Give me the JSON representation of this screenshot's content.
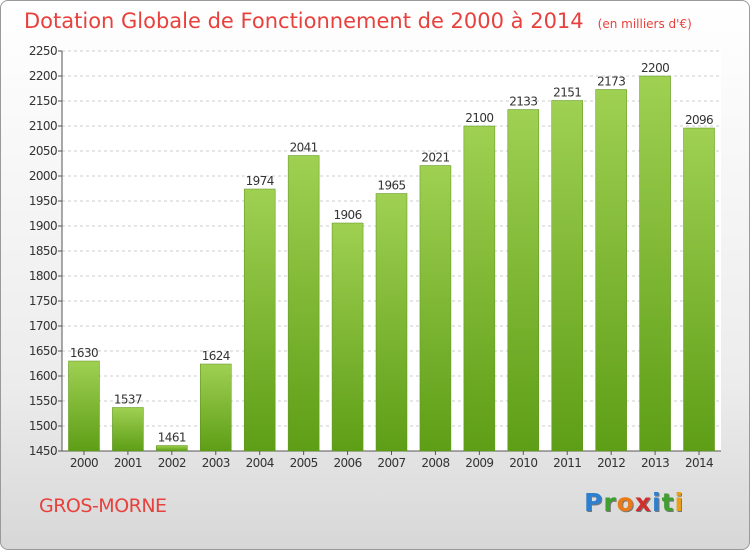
{
  "header": {
    "title": "Dotation Globale de Fonctionnement de 2000 à 2014",
    "units": "(en milliers d'€)"
  },
  "footer": {
    "commune": "GROS-MORNE",
    "logo_letters": [
      "P",
      "r",
      "o",
      "x",
      "i",
      "t",
      "i"
    ]
  },
  "colors": {
    "bar_top": "#9fd052",
    "bar_bottom": "#5e9e16",
    "title": "#e8413d",
    "logo": [
      "#2f7fcf",
      "#3f9f2f",
      "#e87a1a",
      "#d02f2f",
      "#2f7fcf",
      "#3f9f2f",
      "#e8a01a"
    ]
  },
  "chart_data": {
    "type": "bar",
    "categories": [
      "2000",
      "2001",
      "2002",
      "2003",
      "2004",
      "2005",
      "2006",
      "2007",
      "2008",
      "2009",
      "2010",
      "2011",
      "2012",
      "2013",
      "2014"
    ],
    "values": [
      1630,
      1537,
      1461,
      1624,
      1974,
      2041,
      1906,
      1965,
      2021,
      2100,
      2133,
      2151,
      2173,
      2200,
      2096
    ],
    "ylim": [
      1450,
      2250
    ],
    "yticks": [
      1450,
      1500,
      1550,
      1600,
      1650,
      1700,
      1750,
      1800,
      1850,
      1900,
      1950,
      2000,
      2050,
      2100,
      2150,
      2200,
      2250
    ],
    "grid": true
  }
}
